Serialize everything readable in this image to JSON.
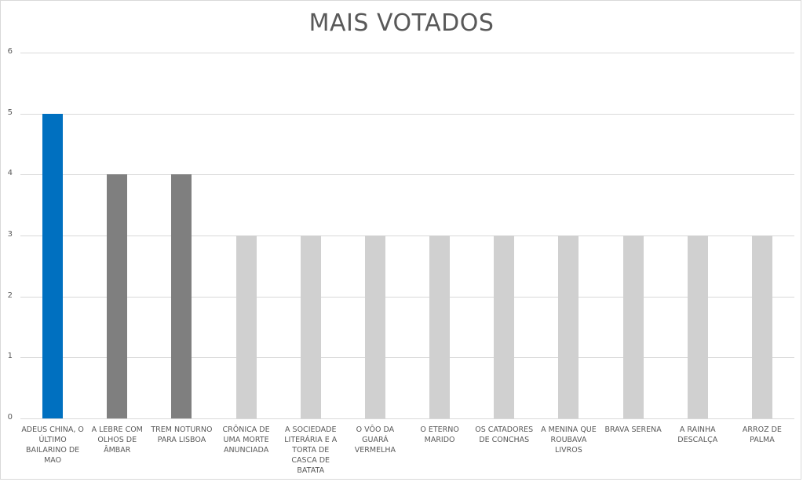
{
  "chart_data": {
    "type": "bar",
    "title": "MAIS VOTADOS",
    "xlabel": "",
    "ylabel": "",
    "ylim": [
      0,
      6
    ],
    "yticks": [
      "0",
      "1",
      "2",
      "3",
      "4",
      "5",
      "6"
    ],
    "grid": true,
    "categories": [
      "ADEUS CHINA, O ÚLTIMO BAILARINO DE MAO",
      "A LEBRE COM OLHOS DE ÂMBAR",
      "TREM NOTURNO PARA LISBOA",
      "CRÔNICA DE UMA MORTE ANUNCIADA",
      "A SOCIEDADE LITERÁRIA E A TORTA DE CASCA DE BATATA",
      "O VÔO DA GUARÁ VERMELHA",
      "O ETERNO MARIDO",
      "OS CATADORES DE CONCHAS",
      "A MENINA QUE ROUBAVA LIVROS",
      "BRAVA SERENA",
      "A RAINHA DESCALÇA",
      "ARROZ DE PALMA"
    ],
    "values": [
      5,
      4,
      4,
      3,
      3,
      3,
      3,
      3,
      3,
      3,
      3,
      3
    ],
    "colors": [
      "#0070c0",
      "#7f7f7f",
      "#7f7f7f",
      "#d0d0d0",
      "#d0d0d0",
      "#d0d0d0",
      "#d0d0d0",
      "#d0d0d0",
      "#d0d0d0",
      "#d0d0d0",
      "#d0d0d0",
      "#d0d0d0"
    ]
  }
}
